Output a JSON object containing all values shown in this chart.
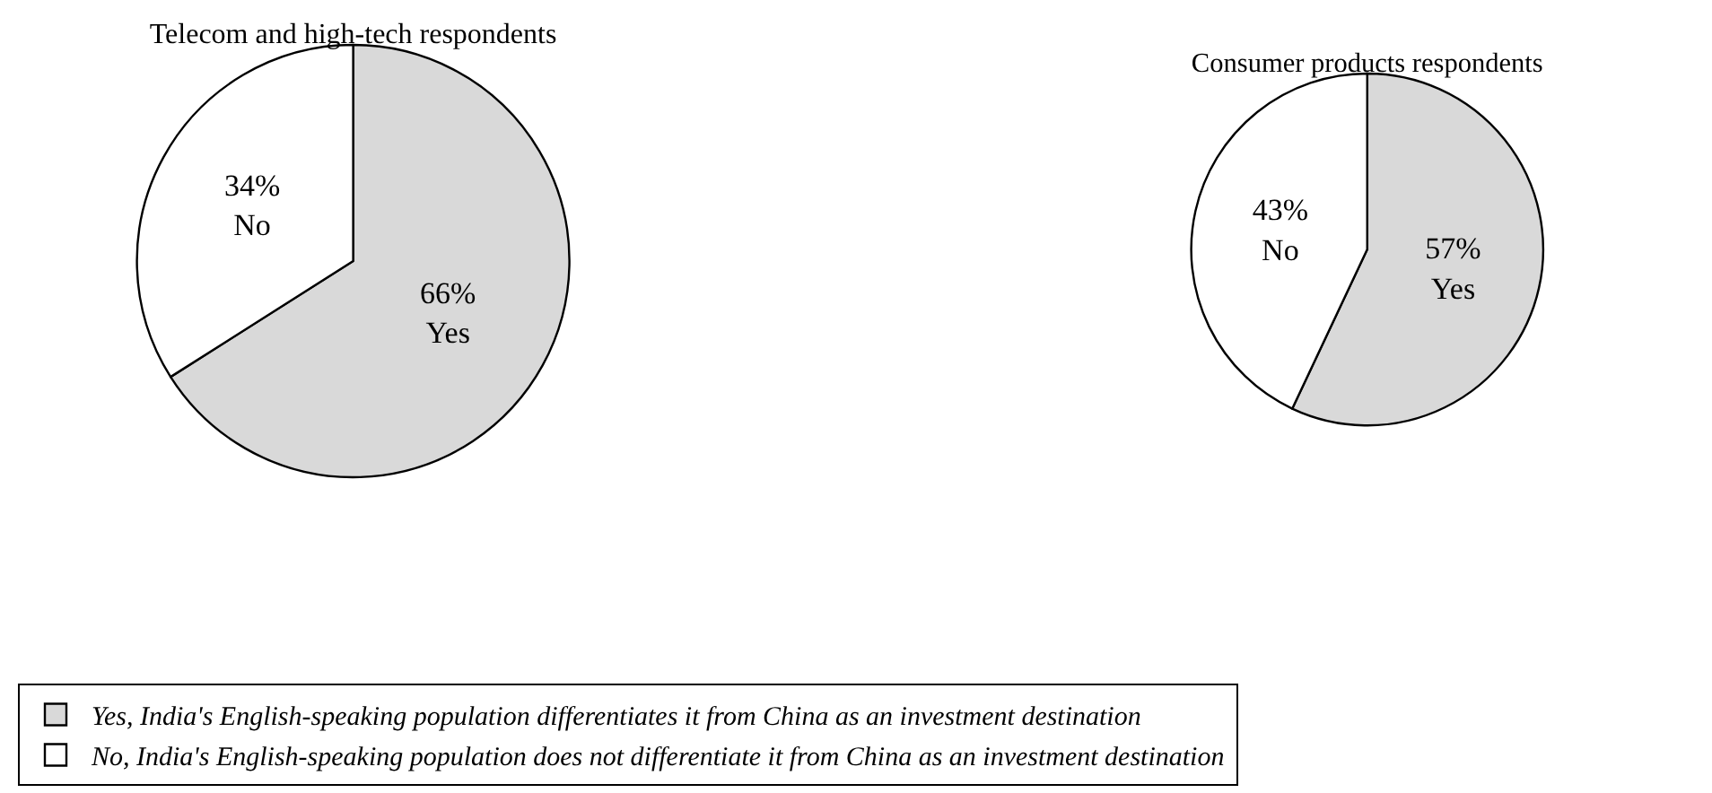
{
  "chart_data": [
    {
      "type": "pie",
      "title": "Telecom and high-tech respondents",
      "categories": [
        "Yes, India's English-speaking population differentiates it from China as an investment destination",
        "No, India's English-speaking population does not differentiate it from China as an investment destination"
      ],
      "values": [
        66,
        34
      ],
      "colors": [
        "#d9d9d9",
        "#ffffff"
      ],
      "value_labels": [
        "66%\nYes",
        "34%\nNo"
      ],
      "legend": "bottom"
    },
    {
      "type": "pie",
      "title": "Consumer products respondents",
      "categories": [
        null,
        null
      ],
      "values": [
        57,
        43
      ],
      "colors": [
        "#d9d9d9",
        "#ffffff"
      ],
      "value_labels": [
        "57%\nYes",
        "43%\nNo"
      ]
    }
  ]
}
